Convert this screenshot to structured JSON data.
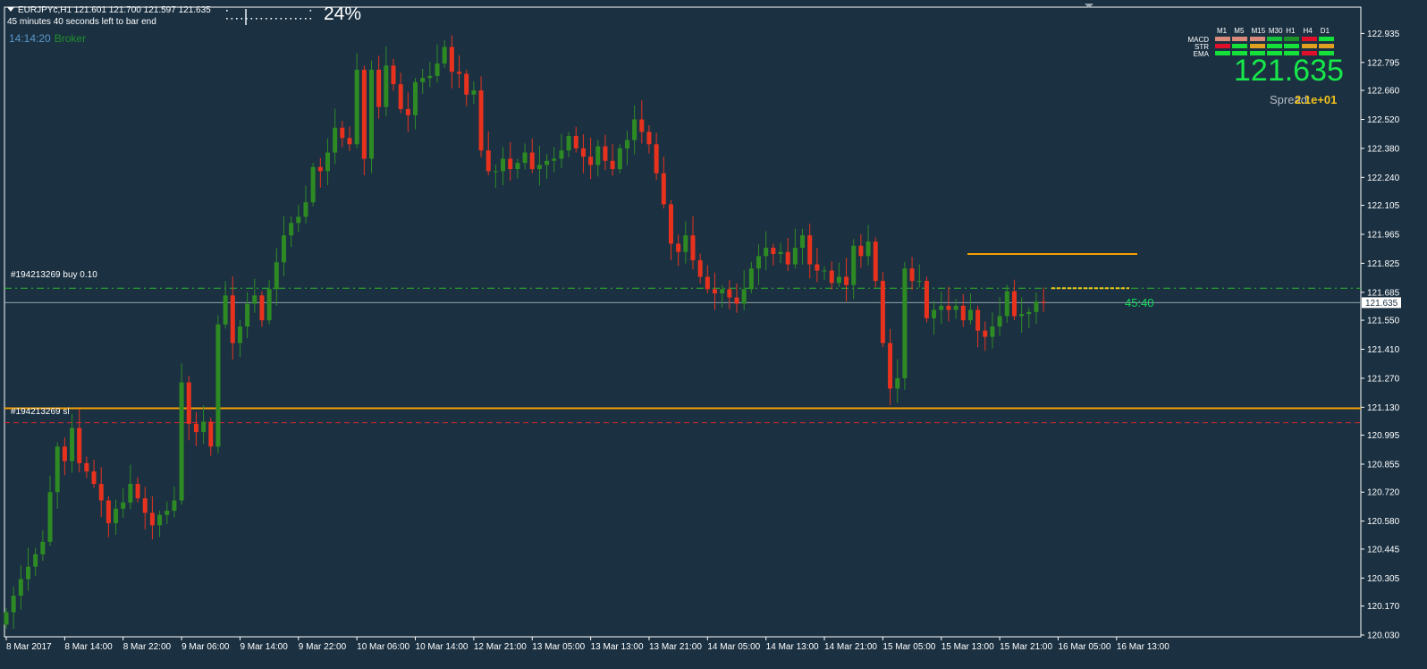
{
  "header": {
    "symbol_line": "EURJPYc,H1  121.601 121.700 121.597 121.635",
    "countdown": "45 minutes 40 seconds left to bar end",
    "server_time": "14:14:20",
    "broker_label": "Broker",
    "progress_percent": "24%",
    "progress_value": 0.24
  },
  "orders": {
    "buy_label": "#194213269 buy 0.10",
    "sl_label": "#194213269 sl"
  },
  "bar_timer": "45:40",
  "mtf_panel": {
    "timeframes": [
      "M1",
      "M5",
      "M15",
      "M30",
      "H1",
      "H4",
      "D1"
    ],
    "rows": [
      {
        "label": "MACD",
        "colors": [
          "#d98a7a",
          "#d98a7a",
          "#d98a7a",
          "#16c03a",
          "#1f8f2a",
          "#e0102a",
          "#16e03a"
        ]
      },
      {
        "label": "STR",
        "colors": [
          "#e0102a",
          "#16e03a",
          "#e0a020",
          "#16e03a",
          "#16e03a",
          "#e0a020",
          "#e0a020"
        ]
      },
      {
        "label": "EMA",
        "colors": [
          "#16e03a",
          "#16e03a",
          "#16e03a",
          "#16e03a",
          "#16e03a",
          "#e0102a",
          "#16e03a"
        ]
      }
    ]
  },
  "price_display": {
    "price": "121.635",
    "spread_label": "Spread:",
    "spread_value": "2.1e+01"
  },
  "colors": {
    "background": "#1b3142",
    "bull": "#2e8b24",
    "bear": "#e8321e",
    "sl_line": "#f5a000",
    "buy_line": "#2db82a",
    "current_price_line": "#8fa0aa"
  },
  "chart_data": {
    "type": "candlestick",
    "symbol": "EURJPYc",
    "timeframe": "H1",
    "ylim": [
      120.03,
      122.98
    ],
    "price_ticks": [
      "122.935",
      "122.795",
      "122.660",
      "122.520",
      "122.380",
      "122.240",
      "122.105",
      "121.965",
      "121.825",
      "121.685",
      "121.550",
      "121.410",
      "121.270",
      "121.130",
      "120.995",
      "120.855",
      "120.720",
      "120.580",
      "120.445",
      "120.305",
      "120.170",
      "120.030"
    ],
    "time_ticks": [
      "8 Mar 2017",
      "8 Mar 14:00",
      "8 Mar 22:00",
      "9 Mar 06:00",
      "9 Mar 14:00",
      "9 Mar 22:00",
      "10 Mar 06:00",
      "10 Mar 14:00",
      "12 Mar 21:00",
      "13 Mar 05:00",
      "13 Mar 13:00",
      "13 Mar 21:00",
      "14 Mar 05:00",
      "14 Mar 13:00",
      "14 Mar 21:00",
      "15 Mar 05:00",
      "15 Mar 13:00",
      "15 Mar 21:00",
      "16 Mar 05:00",
      "16 Mar 13:00"
    ],
    "current_price": 121.635,
    "current_price_label": "121.635",
    "buy_price": 121.705,
    "sl_price": 121.055,
    "support_level": 121.125,
    "resistance_level": 121.87,
    "closes": [
      120.14,
      120.22,
      120.3,
      120.36,
      120.42,
      120.48,
      120.72,
      120.94,
      120.87,
      121.03,
      120.86,
      120.82,
      120.76,
      120.68,
      120.57,
      120.64,
      120.67,
      120.76,
      120.69,
      120.62,
      120.56,
      120.61,
      120.63,
      120.68,
      121.25,
      121.05,
      121.01,
      121.06,
      120.94,
      121.53,
      121.67,
      121.44,
      121.52,
      121.63,
      121.67,
      121.55,
      121.7,
      121.83,
      121.96,
      122.02,
      122.05,
      122.12,
      122.29,
      122.27,
      122.36,
      122.48,
      122.43,
      122.4,
      122.76,
      122.33,
      122.76,
      122.58,
      122.78,
      122.69,
      122.57,
      122.54,
      122.7,
      122.72,
      122.73,
      122.79,
      122.87,
      122.75,
      122.74,
      122.64,
      122.66,
      122.37,
      122.27,
      122.27,
      122.33,
      122.28,
      122.31,
      122.36,
      122.28,
      122.3,
      122.32,
      122.33,
      122.37,
      122.44,
      122.38,
      122.34,
      122.3,
      122.39,
      122.32,
      122.28,
      122.38,
      122.42,
      122.52,
      122.46,
      122.4,
      122.26,
      122.11,
      121.92,
      121.88,
      121.96,
      121.84,
      121.76,
      121.7,
      121.68,
      121.7,
      121.66,
      121.63,
      121.7,
      121.8,
      121.86,
      121.9,
      121.87,
      121.88,
      121.82,
      121.9,
      121.96,
      121.82,
      121.79,
      121.79,
      121.73,
      121.76,
      121.72,
      121.91,
      121.86,
      121.93,
      121.74,
      121.44,
      121.22,
      121.27,
      121.8,
      121.74,
      121.74,
      121.56,
      121.6,
      121.62,
      121.6,
      121.62,
      121.55,
      121.6,
      121.5,
      121.47,
      121.52,
      121.57,
      121.69,
      121.57,
      121.58,
      121.59,
      121.64,
      121.635
    ]
  }
}
